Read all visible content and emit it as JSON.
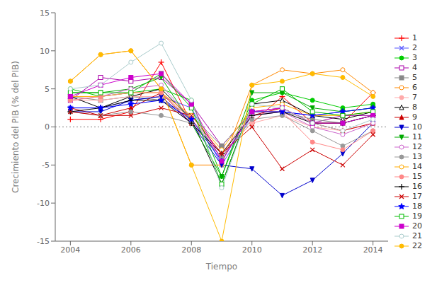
{
  "chart_data": {
    "type": "line",
    "xlabel": "Tiempo",
    "ylabel": "Crecimiento del PIB (% del PIB)",
    "x": [
      2004,
      2005,
      2006,
      2007,
      2008,
      2009,
      2010,
      2011,
      2012,
      2013,
      2014
    ],
    "xlim": [
      2003.5,
      2014.5
    ],
    "xticks": [
      2004,
      2006,
      2008,
      2010,
      2012,
      2014
    ],
    "ylim": [
      -15,
      15
    ],
    "yticks": [
      -15,
      -10,
      -5,
      0,
      5,
      10,
      15
    ],
    "grid": false,
    "legend": "right",
    "series": [
      {
        "name": "1",
        "color": "#ff0000",
        "marker": "plus",
        "values": [
          1.0,
          1.0,
          2.0,
          8.5,
          0.5,
          -3.5,
          0.5,
          4.0,
          0.5,
          0.5,
          4.5
        ]
      },
      {
        "name": "2",
        "color": "#5555ff",
        "marker": "x",
        "values": [
          2.5,
          2.5,
          3.5,
          4.0,
          2.5,
          -5.0,
          1.5,
          2.0,
          1.5,
          2.0,
          2.5
        ]
      },
      {
        "name": "3",
        "color": "#00cc00",
        "marker": "circle",
        "values": [
          5.0,
          4.0,
          4.5,
          5.0,
          3.5,
          -6.5,
          3.5,
          4.5,
          3.5,
          2.5,
          3.0
        ]
      },
      {
        "name": "4",
        "color": "#aa00aa",
        "marker": "square-open",
        "values": [
          3.5,
          6.5,
          6.0,
          6.5,
          3.0,
          -2.5,
          2.0,
          2.5,
          0.5,
          1.5,
          1.5
        ]
      },
      {
        "name": "5",
        "color": "#888888",
        "marker": "square",
        "values": [
          4.0,
          3.5,
          4.0,
          3.5,
          1.5,
          -2.5,
          2.0,
          2.0,
          1.0,
          0.5,
          1.5
        ]
      },
      {
        "name": "6",
        "color": "#ff8800",
        "marker": "circle-open",
        "values": [
          6.0,
          9.5,
          10.0,
          5.0,
          -5.0,
          -5.0,
          5.5,
          7.5,
          7.0,
          7.5,
          4.5
        ]
      },
      {
        "name": "7",
        "color": "#ffaaaa",
        "marker": "circle",
        "values": [
          3.5,
          3.5,
          4.0,
          4.0,
          0.5,
          -3.5,
          0.5,
          1.5,
          0.0,
          -0.5,
          0.5
        ]
      },
      {
        "name": "8",
        "color": "#000000",
        "marker": "triangle-up-open",
        "values": [
          4.0,
          2.5,
          4.0,
          5.0,
          1.0,
          -7.5,
          3.0,
          3.5,
          1.5,
          1.0,
          2.0
        ]
      },
      {
        "name": "9",
        "color": "#cc0000",
        "marker": "triangle-up",
        "values": [
          2.5,
          1.5,
          2.5,
          4.5,
          0.5,
          -4.0,
          1.5,
          2.5,
          0.5,
          -0.5,
          0.5
        ]
      },
      {
        "name": "10",
        "color": "#0000cc",
        "marker": "triangle-down",
        "values": [
          2.0,
          2.0,
          3.5,
          4.0,
          0.5,
          -5.0,
          -5.5,
          -9.0,
          -7.0,
          -3.5,
          0.5
        ]
      },
      {
        "name": "11",
        "color": "#00aa00",
        "marker": "triangle-down",
        "values": [
          4.5,
          4.5,
          5.0,
          6.5,
          0.5,
          -6.5,
          4.5,
          4.5,
          2.5,
          2.0,
          2.5
        ]
      },
      {
        "name": "12",
        "color": "#cc66cc",
        "marker": "circle-open",
        "values": [
          3.5,
          4.0,
          5.0,
          5.5,
          1.0,
          -4.0,
          1.5,
          2.0,
          0.0,
          -1.0,
          0.5
        ]
      },
      {
        "name": "13",
        "color": "#999999",
        "marker": "circle",
        "values": [
          2.0,
          1.5,
          2.0,
          1.5,
          0.5,
          -4.0,
          1.0,
          1.5,
          -0.5,
          -2.5,
          -0.5
        ]
      },
      {
        "name": "14",
        "color": "#ffaa00",
        "marker": "circle-open",
        "values": [
          4.0,
          4.0,
          4.5,
          4.5,
          1.5,
          -3.0,
          2.5,
          3.0,
          1.5,
          1.5,
          2.0
        ]
      },
      {
        "name": "15",
        "color": "#ff8888",
        "marker": "circle",
        "values": [
          3.5,
          4.0,
          4.5,
          4.5,
          1.0,
          -3.5,
          2.0,
          2.0,
          -2.0,
          -3.0,
          -0.5
        ]
      },
      {
        "name": "16",
        "color": "#000000",
        "marker": "plus",
        "values": [
          2.0,
          2.5,
          3.5,
          3.5,
          0.5,
          -3.5,
          1.5,
          2.0,
          0.5,
          0.5,
          1.5
        ]
      },
      {
        "name": "17",
        "color": "#cc0000",
        "marker": "x",
        "values": [
          2.0,
          1.5,
          1.5,
          2.5,
          1.5,
          -3.5,
          0.0,
          -5.5,
          -3.0,
          -5.0,
          -1.0
        ]
      },
      {
        "name": "18",
        "color": "#0000ff",
        "marker": "star",
        "values": [
          2.5,
          2.5,
          3.0,
          3.5,
          1.0,
          -4.5,
          2.0,
          2.0,
          1.5,
          2.0,
          2.5
        ]
      },
      {
        "name": "19",
        "color": "#00bb00",
        "marker": "square-open",
        "values": [
          4.5,
          4.5,
          4.5,
          7.0,
          2.5,
          -7.5,
          3.0,
          5.0,
          2.0,
          1.5,
          2.0
        ]
      },
      {
        "name": "20",
        "color": "#cc00cc",
        "marker": "square",
        "values": [
          4.0,
          5.5,
          6.5,
          7.0,
          3.0,
          -4.5,
          2.0,
          2.5,
          0.5,
          0.5,
          1.5
        ]
      },
      {
        "name": "21",
        "color": "#aacccc",
        "marker": "circle-open",
        "values": [
          5.0,
          5.5,
          8.5,
          11.0,
          3.5,
          -8.0,
          3.0,
          2.5,
          0.5,
          -0.5,
          1.0
        ]
      },
      {
        "name": "22",
        "color": "#ffbb00",
        "marker": "circle",
        "values": [
          6.0,
          9.5,
          10.0,
          5.0,
          -5.0,
          -15.0,
          5.5,
          6.0,
          7.0,
          6.5,
          4.0
        ]
      }
    ]
  }
}
